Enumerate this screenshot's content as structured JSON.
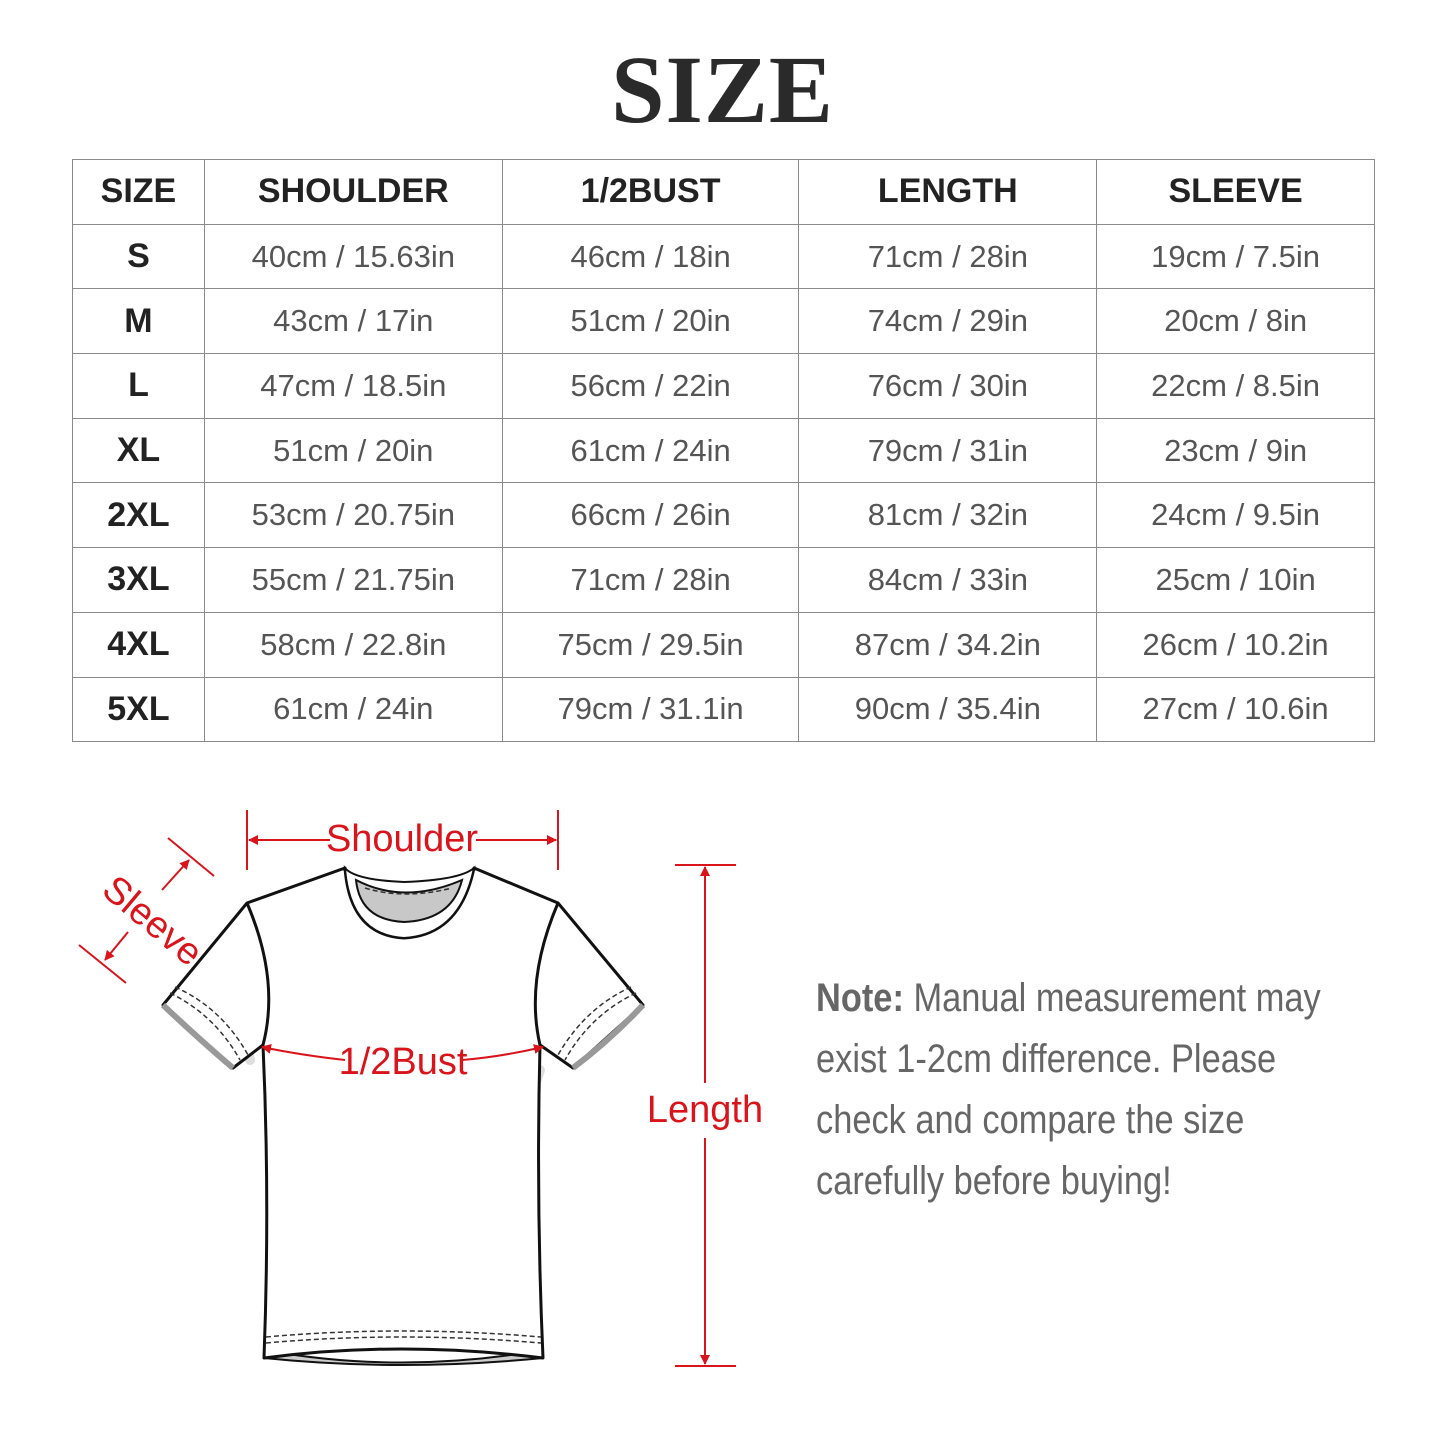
{
  "title": "SIZE",
  "table": {
    "headers": [
      "SIZE",
      "SHOULDER",
      "1/2BUST",
      "LENGTH",
      "SLEEVE"
    ],
    "rows": [
      [
        "S",
        "40cm / 15.63in",
        "46cm / 18in",
        "71cm / 28in",
        "19cm / 7.5in"
      ],
      [
        "M",
        "43cm / 17in",
        "51cm / 20in",
        "74cm / 29in",
        "20cm / 8in"
      ],
      [
        "L",
        "47cm / 18.5in",
        "56cm / 22in",
        "76cm / 30in",
        "22cm / 8.5in"
      ],
      [
        "XL",
        "51cm / 20in",
        "61cm / 24in",
        "79cm / 31in",
        "23cm / 9in"
      ],
      [
        "2XL",
        "53cm / 20.75in",
        "66cm / 26in",
        "81cm / 32in",
        "24cm / 9.5in"
      ],
      [
        "3XL",
        "55cm / 21.75in",
        "71cm / 28in",
        "84cm / 33in",
        "25cm / 10in"
      ],
      [
        "4XL",
        "58cm / 22.8in",
        "75cm / 29.5in",
        "87cm / 34.2in",
        "26cm / 10.2in"
      ],
      [
        "5XL",
        "61cm / 24in",
        "79cm / 31.1in",
        "90cm / 35.4in",
        "27cm / 10.6in"
      ]
    ]
  },
  "diagram": {
    "labels": {
      "shoulder": "Shoulder",
      "sleeve": "Sleeve",
      "bust": "1/2Bust",
      "length": "Length"
    },
    "accent_color": "#d9141b"
  },
  "note": {
    "label": "Note:",
    "lines": [
      "Manual measurement may",
      "exist 1-2cm difference. Please",
      "check and compare the size",
      "carefully before buying!"
    ]
  }
}
